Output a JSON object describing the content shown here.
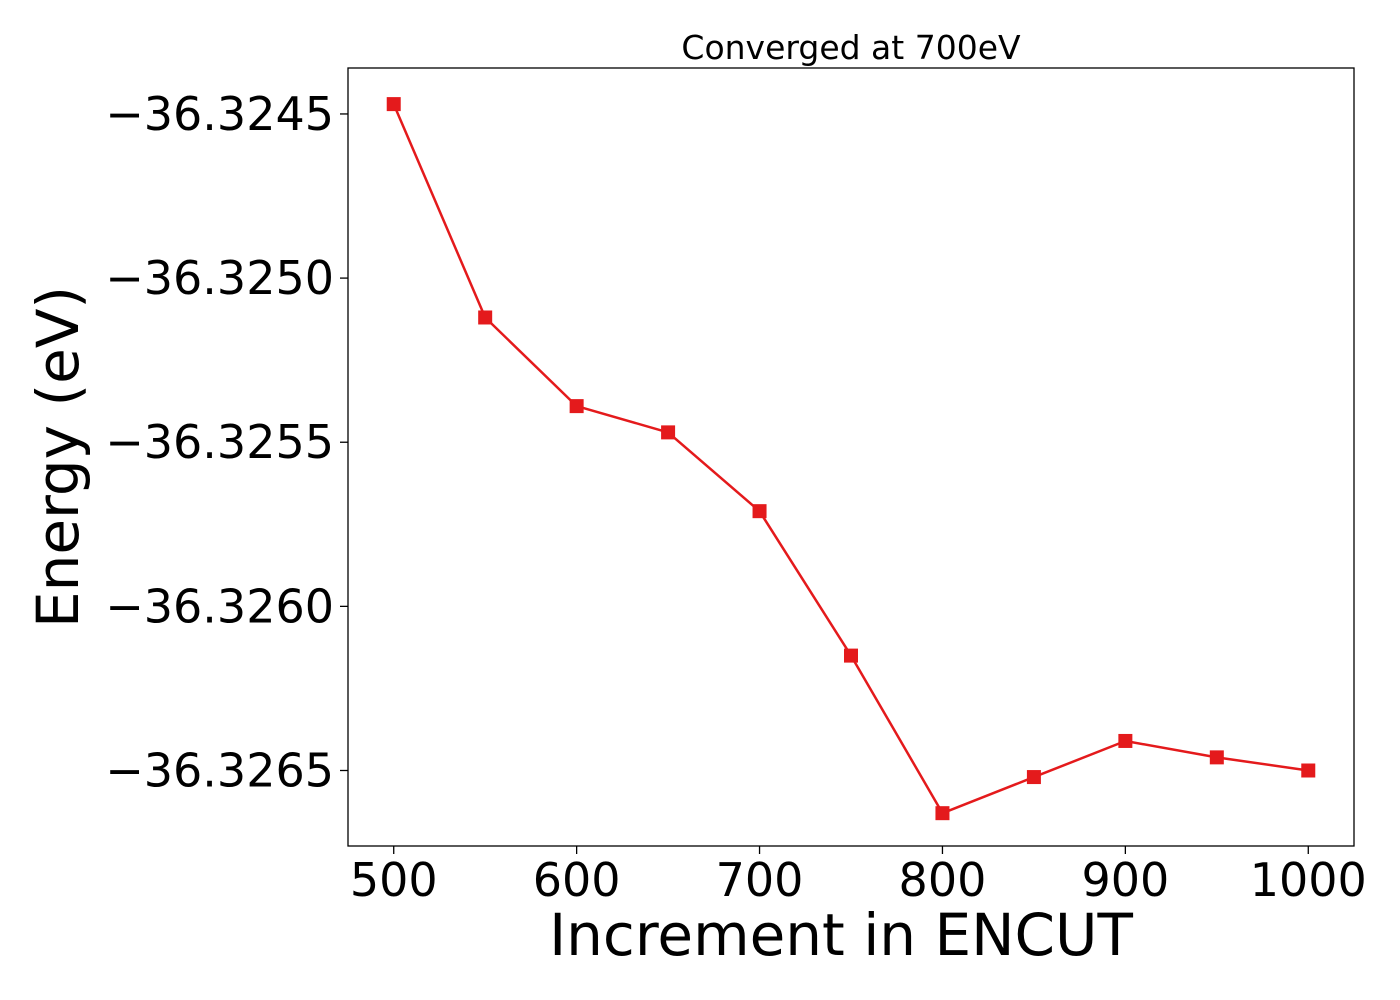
{
  "chart_data": {
    "type": "line",
    "title": "Converged at 700eV",
    "xlabel": "Increment in ENCUT",
    "ylabel": "Energy (eV)",
    "x": [
      500,
      550,
      600,
      650,
      700,
      750,
      800,
      850,
      900,
      950,
      1000
    ],
    "series": [
      {
        "values": [
          -36.32447,
          -36.32512,
          -36.32539,
          -36.32547,
          -36.32571,
          -36.32615,
          -36.32663,
          -36.32652,
          -36.32641,
          -36.32646,
          -36.3265
        ],
        "color": "#e41a1c",
        "marker": "square"
      }
    ],
    "xlim": [
      475,
      1025
    ],
    "ylim": [
      -36.32673,
      -36.32436
    ],
    "xticks": [
      500,
      600,
      700,
      800,
      900,
      1000
    ],
    "xtick_labels": [
      "500",
      "600",
      "700",
      "800",
      "900",
      "1000"
    ],
    "yticks": [
      -36.3245,
      -36.325,
      -36.3255,
      -36.326,
      -36.3265
    ],
    "ytick_labels": [
      "−36.3245",
      "−36.3250",
      "−36.3255",
      "−36.3260",
      "−36.3265"
    ],
    "grid": false,
    "legend": false
  }
}
